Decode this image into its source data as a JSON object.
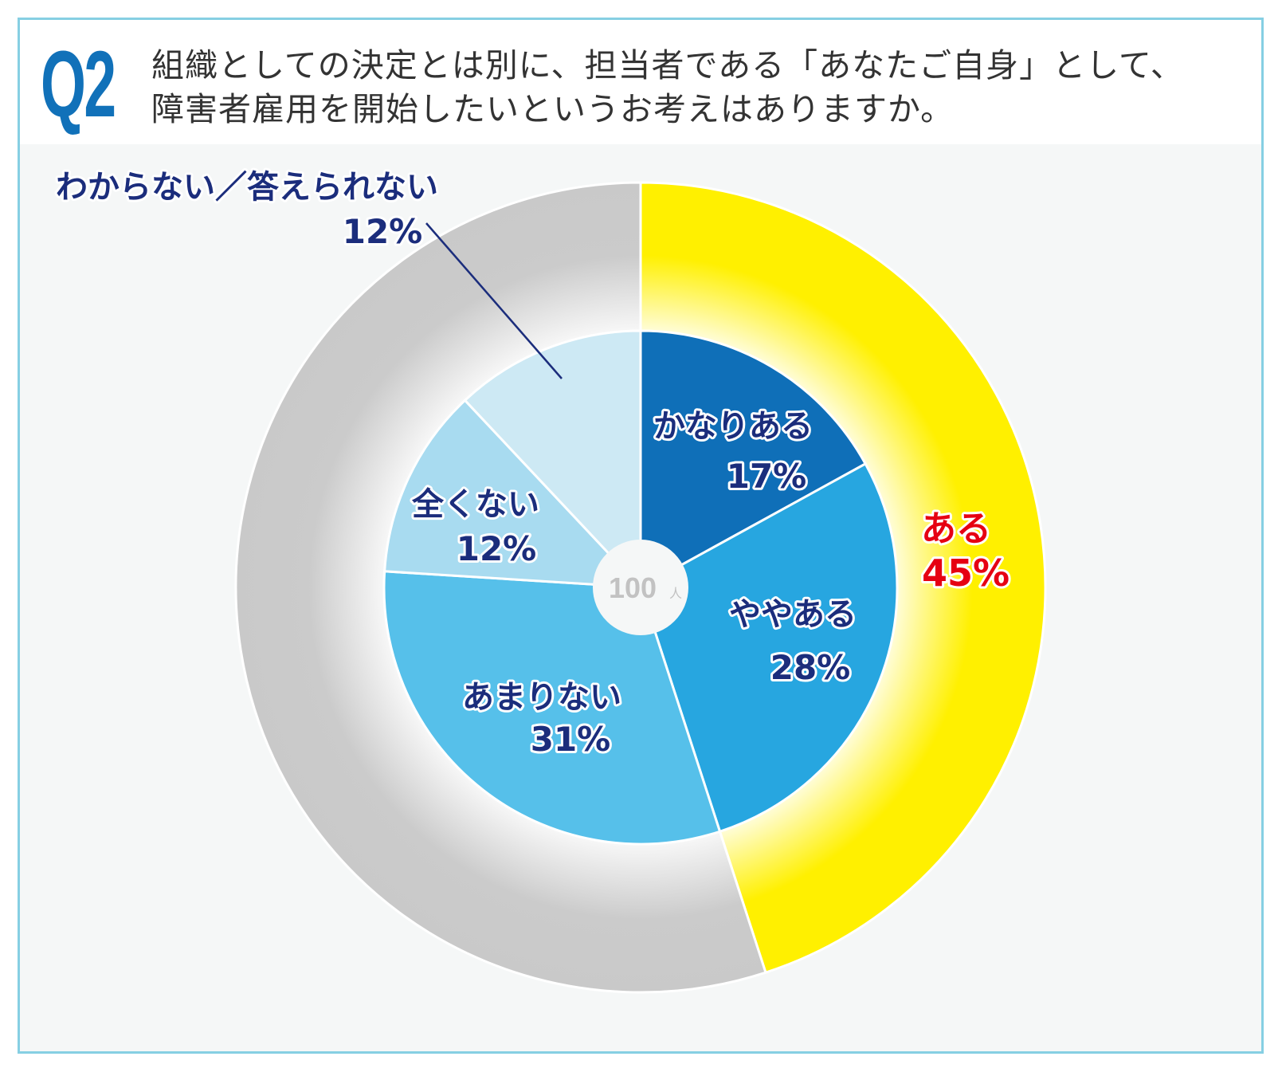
{
  "header": {
    "q_number": "Q2",
    "question_line1": "組織としての決定とは別に、担当者である「あなたご自身」として、",
    "question_line2": "障害者雇用を開始したいというお考えはありますか。"
  },
  "chart_data": {
    "type": "pie",
    "subtype": "nested-donut",
    "center_label": {
      "value": "100",
      "unit": "人"
    },
    "inner": [
      {
        "label": "かなりある",
        "value": 17,
        "display": "17%",
        "color": "#0f6fb8"
      },
      {
        "label": "ややある",
        "value": 28,
        "display": "28%",
        "color": "#27a6e0"
      },
      {
        "label": "あまりない",
        "value": 31,
        "display": "31%",
        "color": "#56c0ea"
      },
      {
        "label": "全くない",
        "value": 12,
        "display": "12%",
        "color": "#a8dbf0"
      },
      {
        "label": "わからない／答えられない",
        "value": 12,
        "display": "12%",
        "color": "#cde9f4"
      }
    ],
    "outer": [
      {
        "label": "ある",
        "value": 45,
        "display": "45%",
        "color": "#fff000"
      },
      {
        "label": "",
        "value": 55,
        "display": "",
        "color": "#c9c9c9"
      }
    ],
    "start": "top",
    "direction": "clockwise",
    "label_color": "#1b2d7c",
    "highlight_label_color": "#e60012"
  }
}
